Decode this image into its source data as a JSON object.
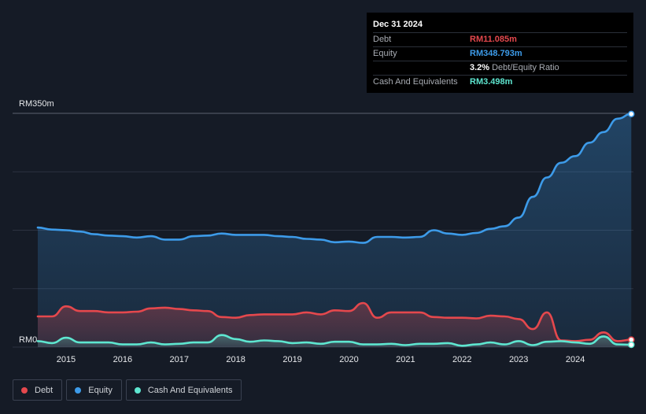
{
  "tooltip": {
    "date": "Dec 31 2024",
    "rows": [
      {
        "label": "Debt",
        "value": "RM11.085m",
        "color": "#e5484d",
        "extra": ""
      },
      {
        "label": "Equity",
        "value": "RM348.793m",
        "color": "#3d9be9",
        "extra": ""
      },
      {
        "label": "",
        "value": "3.2%",
        "color": "#ffffff",
        "extra": "Debt/Equity Ratio"
      },
      {
        "label": "Cash And Equivalents",
        "value": "RM3.498m",
        "color": "#5ee6d0",
        "extra": ""
      }
    ]
  },
  "legend": [
    {
      "label": "Debt",
      "color": "#e5484d"
    },
    {
      "label": "Equity",
      "color": "#3d9be9"
    },
    {
      "label": "Cash And Equivalents",
      "color": "#5ee6d0"
    }
  ],
  "chart_data": {
    "type": "area",
    "y_top_label": "RM350m",
    "y_bottom_label": "RM0",
    "ylim": [
      0,
      350
    ],
    "xlim": [
      2014.5,
      2025.0
    ],
    "x_ticks": [
      2015,
      2016,
      2017,
      2018,
      2019,
      2020,
      2021,
      2022,
      2023,
      2024
    ],
    "x_tick_labels": [
      "2015",
      "2016",
      "2017",
      "2018",
      "2019",
      "2020",
      "2021",
      "2022",
      "2023",
      "2024"
    ],
    "grid": true,
    "series": [
      {
        "name": "Equity",
        "color": "#3d9be9",
        "points": [
          [
            2014.5,
            179
          ],
          [
            2014.75,
            176
          ],
          [
            2015.0,
            175
          ],
          [
            2015.25,
            173
          ],
          [
            2015.5,
            169
          ],
          [
            2015.75,
            167
          ],
          [
            2016.0,
            166
          ],
          [
            2016.25,
            164
          ],
          [
            2016.5,
            166
          ],
          [
            2016.75,
            161
          ],
          [
            2017.0,
            161
          ],
          [
            2017.25,
            166
          ],
          [
            2017.5,
            167
          ],
          [
            2017.75,
            170
          ],
          [
            2018.0,
            168
          ],
          [
            2018.25,
            168
          ],
          [
            2018.5,
            168
          ],
          [
            2018.75,
            166
          ],
          [
            2019.0,
            165
          ],
          [
            2019.25,
            162
          ],
          [
            2019.5,
            161
          ],
          [
            2019.75,
            157
          ],
          [
            2020.0,
            158
          ],
          [
            2020.25,
            156
          ],
          [
            2020.5,
            165
          ],
          [
            2020.75,
            165
          ],
          [
            2021.0,
            164
          ],
          [
            2021.25,
            165
          ],
          [
            2021.5,
            175
          ],
          [
            2021.75,
            170
          ],
          [
            2022.0,
            168
          ],
          [
            2022.25,
            171
          ],
          [
            2022.5,
            177
          ],
          [
            2022.75,
            181
          ],
          [
            2023.0,
            194
          ],
          [
            2023.25,
            225
          ],
          [
            2023.5,
            254
          ],
          [
            2023.75,
            276
          ],
          [
            2024.0,
            286
          ],
          [
            2024.25,
            306
          ],
          [
            2024.5,
            322
          ],
          [
            2024.75,
            342
          ],
          [
            2024.99,
            349
          ]
        ]
      },
      {
        "name": "Debt",
        "color": "#e5484d",
        "points": [
          [
            2014.5,
            46
          ],
          [
            2014.75,
            46
          ],
          [
            2015.0,
            61
          ],
          [
            2015.25,
            54
          ],
          [
            2015.5,
            54
          ],
          [
            2015.75,
            52
          ],
          [
            2016.0,
            52
          ],
          [
            2016.25,
            53
          ],
          [
            2016.5,
            58
          ],
          [
            2016.75,
            59
          ],
          [
            2017.0,
            57
          ],
          [
            2017.25,
            55
          ],
          [
            2017.5,
            54
          ],
          [
            2017.75,
            45
          ],
          [
            2018.0,
            44
          ],
          [
            2018.25,
            48
          ],
          [
            2018.5,
            49
          ],
          [
            2018.75,
            49
          ],
          [
            2019.0,
            49
          ],
          [
            2019.25,
            52
          ],
          [
            2019.5,
            49
          ],
          [
            2019.75,
            55
          ],
          [
            2020.0,
            54
          ],
          [
            2020.25,
            66
          ],
          [
            2020.5,
            44
          ],
          [
            2020.75,
            52
          ],
          [
            2021.0,
            52
          ],
          [
            2021.25,
            52
          ],
          [
            2021.5,
            45
          ],
          [
            2021.75,
            44
          ],
          [
            2022.0,
            44
          ],
          [
            2022.25,
            43
          ],
          [
            2022.5,
            47
          ],
          [
            2022.75,
            46
          ],
          [
            2023.0,
            42
          ],
          [
            2023.25,
            27
          ],
          [
            2023.5,
            52
          ],
          [
            2023.75,
            10
          ],
          [
            2024.0,
            9
          ],
          [
            2024.25,
            11
          ],
          [
            2024.5,
            22
          ],
          [
            2024.75,
            9
          ],
          [
            2024.99,
            11.1
          ]
        ]
      },
      {
        "name": "Cash And Equivalents",
        "color": "#5ee6d0",
        "points": [
          [
            2014.5,
            9
          ],
          [
            2014.75,
            6
          ],
          [
            2015.0,
            14
          ],
          [
            2015.25,
            7
          ],
          [
            2015.5,
            7
          ],
          [
            2015.75,
            7
          ],
          [
            2016.0,
            4
          ],
          [
            2016.25,
            4
          ],
          [
            2016.5,
            7
          ],
          [
            2016.75,
            4
          ],
          [
            2017.0,
            5
          ],
          [
            2017.25,
            7
          ],
          [
            2017.5,
            7
          ],
          [
            2017.75,
            18
          ],
          [
            2018.0,
            12
          ],
          [
            2018.25,
            8
          ],
          [
            2018.5,
            10
          ],
          [
            2018.75,
            9
          ],
          [
            2019.0,
            6
          ],
          [
            2019.25,
            7
          ],
          [
            2019.5,
            5
          ],
          [
            2019.75,
            8
          ],
          [
            2020.0,
            8
          ],
          [
            2020.25,
            4
          ],
          [
            2020.5,
            4
          ],
          [
            2020.75,
            5
          ],
          [
            2021.0,
            3
          ],
          [
            2021.25,
            5
          ],
          [
            2021.5,
            5
          ],
          [
            2021.75,
            6
          ],
          [
            2022.0,
            2
          ],
          [
            2022.25,
            4
          ],
          [
            2022.5,
            7
          ],
          [
            2022.75,
            4
          ],
          [
            2023.0,
            9
          ],
          [
            2023.25,
            3
          ],
          [
            2023.5,
            8
          ],
          [
            2023.75,
            9
          ],
          [
            2024.0,
            7
          ],
          [
            2024.25,
            5
          ],
          [
            2024.5,
            16
          ],
          [
            2024.75,
            4
          ],
          [
            2024.99,
            3.5
          ]
        ]
      }
    ]
  }
}
